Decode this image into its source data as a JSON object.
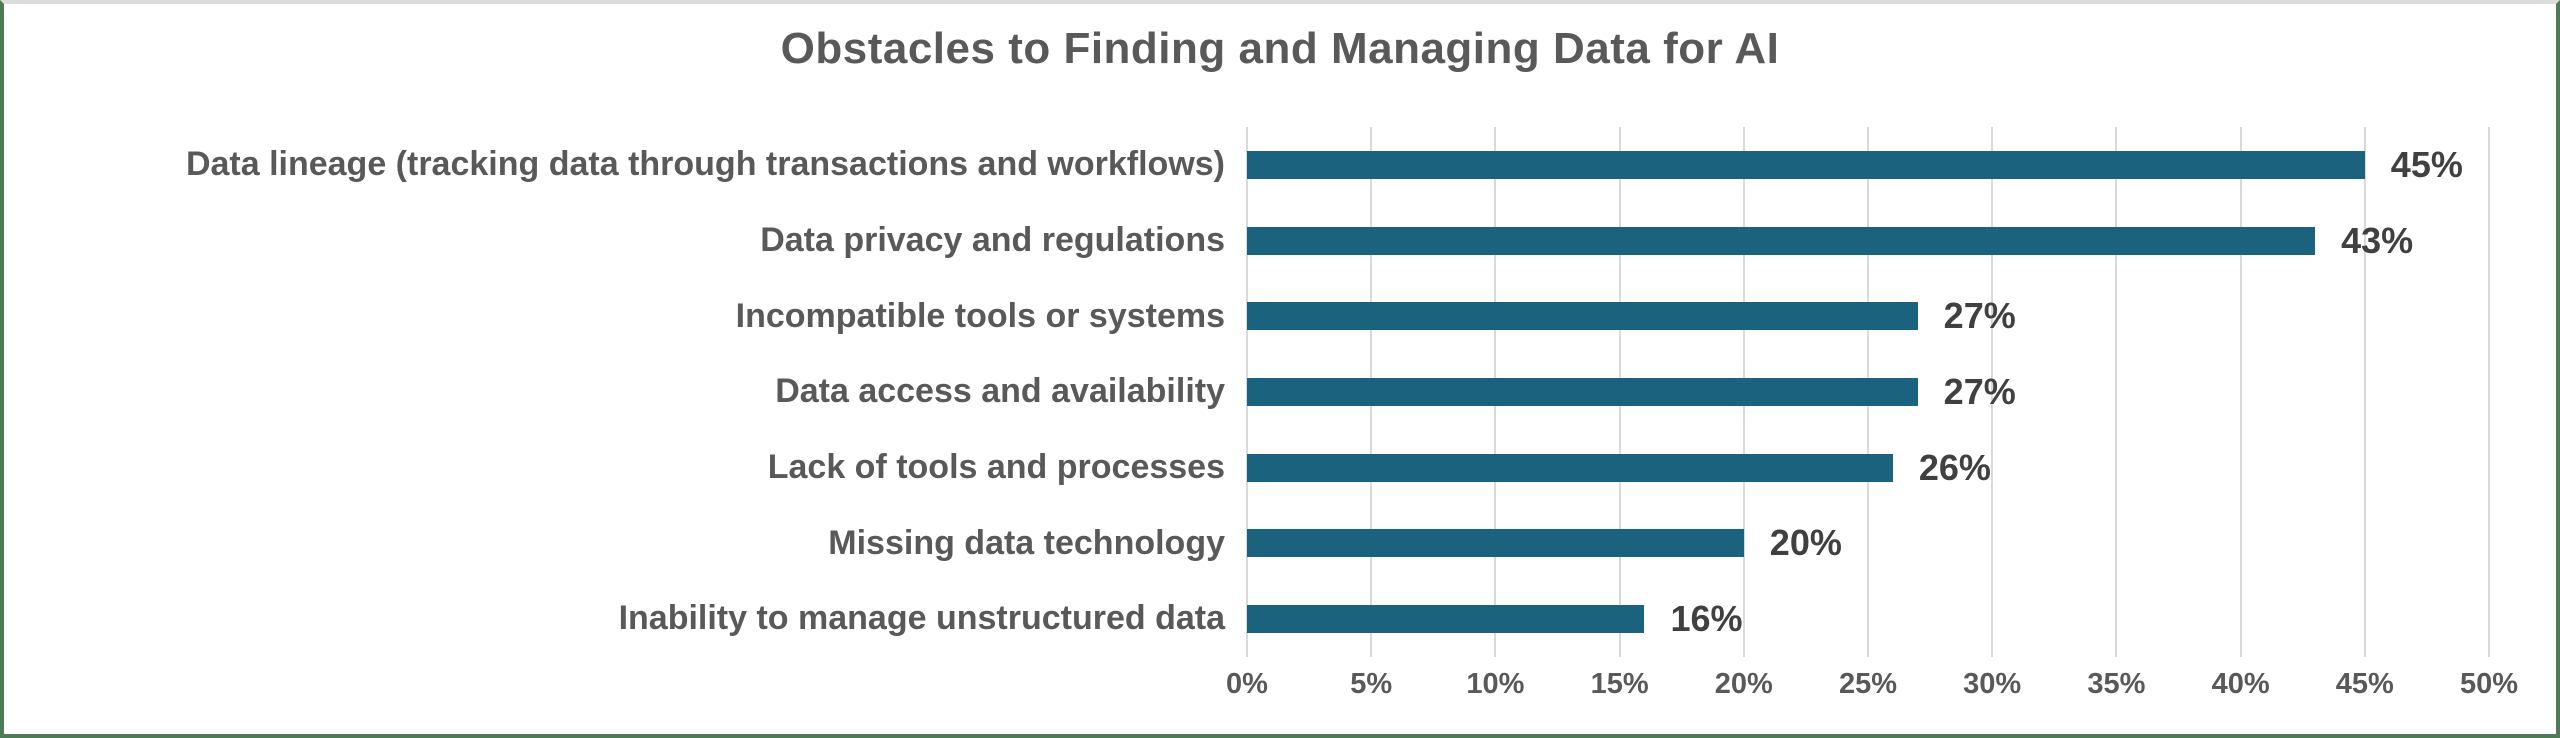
{
  "frame": {
    "background": "#ffffff",
    "border_color": "#4e7b55",
    "top_border_color": "#dcdcdc"
  },
  "chart_data": {
    "type": "bar",
    "orientation": "horizontal",
    "title": "Obstacles to Finding and Managing Data for AI",
    "categories": [
      "Data lineage (tracking data through transactions and workflows)",
      "Data privacy and regulations",
      "Incompatible tools or systems",
      "Data access and availability",
      "Lack of tools and processes",
      "Missing data technology",
      "Inability to manage unstructured data"
    ],
    "values": [
      45,
      43,
      27,
      27,
      26,
      20,
      16
    ],
    "value_labels": [
      "45%",
      "43%",
      "27%",
      "27%",
      "26%",
      "20%",
      "16%"
    ],
    "x_ticks": [
      "0%",
      "5%",
      "10%",
      "15%",
      "20%",
      "25%",
      "30%",
      "35%",
      "40%",
      "45%",
      "50%"
    ],
    "x_tick_values": [
      0,
      5,
      10,
      15,
      20,
      25,
      30,
      35,
      40,
      45,
      50
    ],
    "xlim": [
      0,
      50
    ],
    "xlabel": "",
    "ylabel": "",
    "grid": true,
    "legend": false,
    "bar_color": "#1a627e",
    "title_color": "#595959",
    "category_label_color": "#595959",
    "value_label_color": "#404040",
    "tick_label_color": "#595959",
    "gridline_color": "#d9d9d9"
  }
}
